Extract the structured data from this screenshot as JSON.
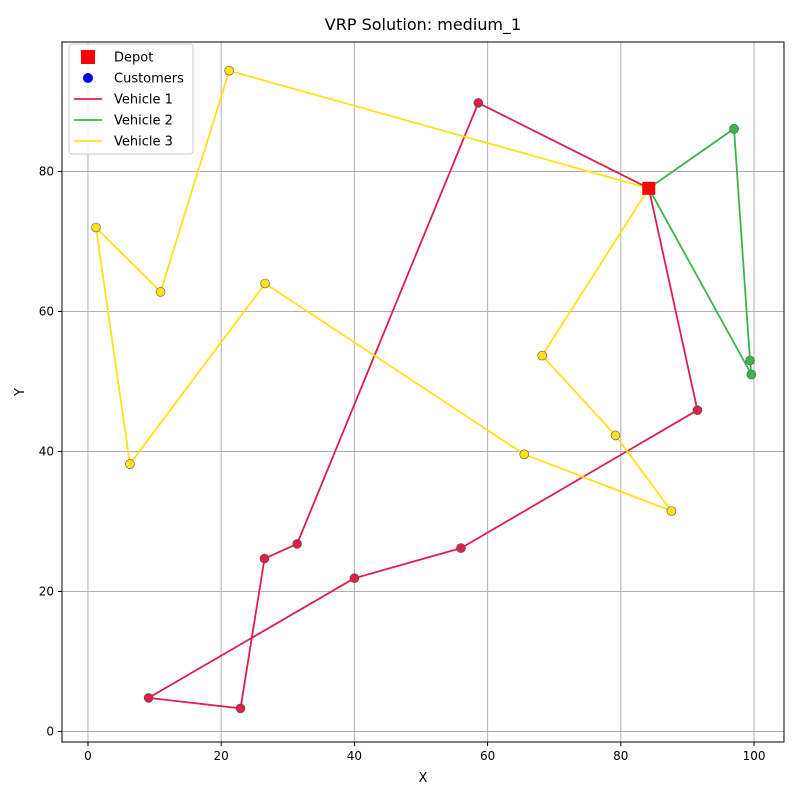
{
  "chart_data": {
    "type": "line",
    "title": "VRP Solution: medium_1",
    "xlabel": "X",
    "ylabel": "Y",
    "xlim": [
      -3.9,
      104.5
    ],
    "ylim": [
      -1.5,
      98.5
    ],
    "xticks": [
      0,
      20,
      40,
      60,
      80,
      100
    ],
    "yticks": [
      0,
      20,
      40,
      60,
      80
    ],
    "grid": true,
    "legend_position": "top-left",
    "depot": {
      "label": "Depot",
      "x": 84.2,
      "y": 77.6,
      "color": "#ff0000"
    },
    "customers_legend": {
      "label": "Customers",
      "color": "#0000ff"
    },
    "series": [
      {
        "name": "Vehicle 1",
        "color": "#dc1f4b",
        "points": [
          [
            84.2,
            77.6
          ],
          [
            58.6,
            89.8
          ],
          [
            31.4,
            26.8
          ],
          [
            26.5,
            24.7
          ],
          [
            22.9,
            3.3
          ],
          [
            9.1,
            4.8
          ],
          [
            40.0,
            21.9
          ],
          [
            56.0,
            26.2
          ],
          [
            91.5,
            45.9
          ],
          [
            84.2,
            77.6
          ]
        ]
      },
      {
        "name": "Vehicle 2",
        "color": "#3cb44b",
        "points": [
          [
            84.2,
            77.6
          ],
          [
            97.0,
            86.1
          ],
          [
            99.4,
            53.0
          ],
          [
            99.6,
            51.0
          ],
          [
            84.2,
            77.6
          ]
        ]
      },
      {
        "name": "Vehicle 3",
        "color": "#ffe119",
        "points": [
          [
            84.2,
            77.6
          ],
          [
            21.2,
            94.4
          ],
          [
            10.9,
            62.8
          ],
          [
            1.2,
            72.0
          ],
          [
            6.3,
            38.2
          ],
          [
            26.6,
            64.0
          ],
          [
            65.5,
            39.6
          ],
          [
            87.6,
            31.5
          ],
          [
            79.2,
            42.3
          ],
          [
            68.2,
            53.7
          ],
          [
            84.2,
            77.6
          ]
        ]
      }
    ]
  }
}
